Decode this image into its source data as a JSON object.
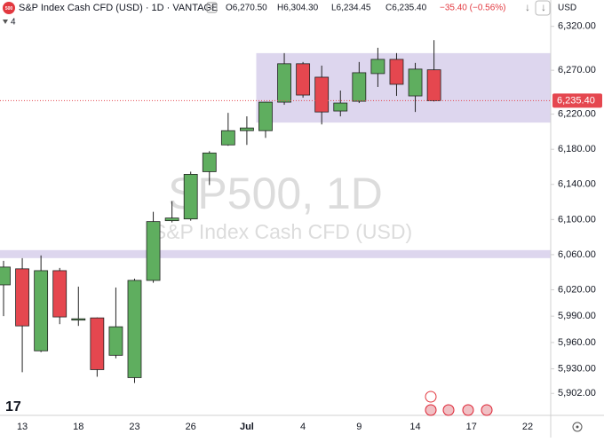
{
  "chart_data": {
    "type": "candlestick",
    "symbol": "S&P Index Cash CFD (USD) · 1D · VANTAGE",
    "ohlc_header": [
      "O6,270.50",
      "H6,304.30",
      "L6,234.45",
      "C6,235.40",
      "−35.40 (−0.56%)"
    ],
    "indicator_count": "4",
    "currency": "USD",
    "watermark": "SP500, 1D",
    "watermark_subtitle": "S&P Index Cash CFD (USD)",
    "categories": [
      null,
      "13",
      null,
      null,
      "18",
      null,
      null,
      "23",
      null,
      null,
      "26",
      null,
      null,
      "Jul",
      null,
      null,
      "4",
      null,
      null,
      "9",
      null,
      null,
      "14",
      null,
      null,
      "17",
      null,
      null,
      "22",
      null
    ],
    "open": [
      6025.6,
      6043.9,
      5950.5,
      6041.8,
      5986.0,
      5988.0,
      5945.4,
      5920.0,
      6030.7,
      6098.7,
      6100.7,
      6154.5,
      6185.0,
      6201.2,
      6201.2,
      6233.7,
      6277.4,
      6262.1,
      6223.6,
      6234.7,
      6266.2,
      6282.4,
      6240.8,
      6270.5,
      null,
      null,
      null,
      null,
      null,
      null
    ],
    "high": [
      6053.0,
      6056.0,
      6059.1,
      6044.9,
      6023.6,
      5988.5,
      6022.6,
      6032.7,
      6108.8,
      6121.0,
      6154.5,
      6177.9,
      6221.5,
      6217.5,
      6234.0,
      6289.5,
      6279.4,
      6275.3,
      6246.9,
      6279.4,
      6295.6,
      6289.5,
      6278.4,
      6304.3,
      null,
      null,
      null,
      null,
      null,
      null
    ],
    "low": [
      5990.1,
      5926.1,
      5949.0,
      5980.9,
      5978.9,
      5921.0,
      5942.0,
      5913.9,
      6028.0,
      6096.7,
      6098.7,
      6139.3,
      6184.0,
      6185.0,
      6193.0,
      6230.7,
      6238.8,
      6208.3,
      6217.5,
      6232.7,
      6251.0,
      6240.8,
      6222.5,
      6234.45,
      null,
      null,
      null,
      null,
      null,
      null
    ],
    "close": [
      6045.9,
      5978.9,
      6041.8,
      5989.1,
      5987.0,
      5929.1,
      5977.9,
      6030.7,
      6097.7,
      6101.7,
      6151.5,
      6175.8,
      6201.2,
      6204.3,
      6233.7,
      6277.4,
      6241.8,
      6222.5,
      6232.7,
      6267.2,
      6282.4,
      6254.0,
      6271.3,
      6235.4,
      null,
      null,
      null,
      null,
      null,
      null
    ],
    "up_color": "#5fae5f",
    "down_color": "#e5474f",
    "zones": [
      {
        "start": 14,
        "top": 6289.5,
        "bottom": 6210.4,
        "color": "#ddd6ee"
      },
      {
        "start": 0,
        "top": 6065.2,
        "bottom": 6056.1,
        "color": "#ddd6ee"
      }
    ],
    "last_price": {
      "value": 6235.4,
      "label": "6,235.40"
    },
    "ylim": [
      5877,
      6350
    ],
    "yticks": [
      {
        "value": 6320,
        "label": "6,320.00"
      },
      {
        "value": 6270,
        "label": "6,270.00"
      },
      {
        "value": 6220,
        "label": "6,220.00"
      },
      {
        "value": 6180,
        "label": "6,180.00"
      },
      {
        "value": 6140,
        "label": "6,140.00"
      },
      {
        "value": 6100,
        "label": "6,100.00"
      },
      {
        "value": 6060,
        "label": "6,060.00"
      },
      {
        "value": 6020,
        "label": "6,020.00"
      },
      {
        "value": 5990,
        "label": "5,990.00"
      },
      {
        "value": 5960,
        "label": "5,960.00"
      },
      {
        "value": 5930,
        "label": "5,930.00"
      },
      {
        "value": 5902,
        "label": "5,902.00"
      }
    ]
  }
}
